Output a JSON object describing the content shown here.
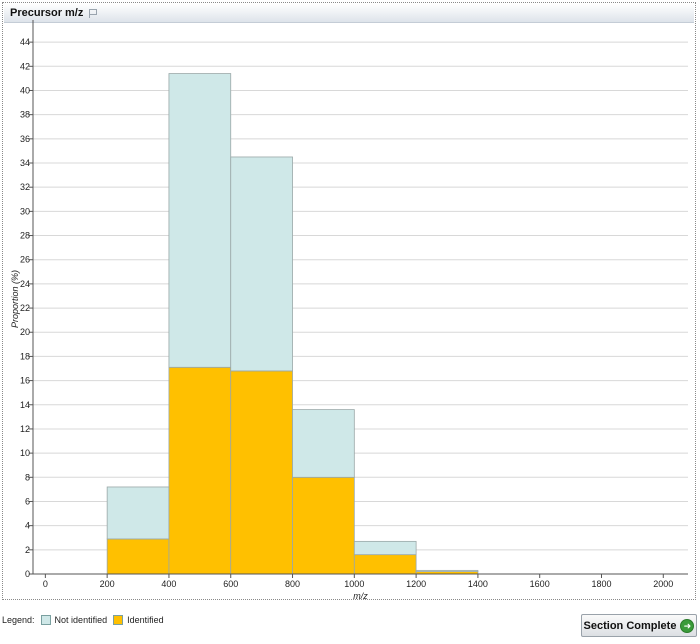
{
  "panel": {
    "title": "Precursor m/z"
  },
  "chart_data": {
    "type": "bar",
    "stacked": true,
    "xlabel": "m/z",
    "ylabel": "Proportion (%)",
    "xlim": [
      -40,
      2080
    ],
    "ylim": [
      0,
      45.5
    ],
    "x_ticks": [
      0,
      200,
      400,
      600,
      800,
      1000,
      1200,
      1400,
      1600,
      1800,
      2000
    ],
    "y_ticks": [
      0,
      2,
      4,
      6,
      8,
      10,
      12,
      14,
      16,
      18,
      20,
      22,
      24,
      26,
      28,
      30,
      32,
      34,
      36,
      38,
      40,
      42,
      44
    ],
    "grid": "horizontal",
    "bins": [
      [
        200,
        400
      ],
      [
        400,
        600
      ],
      [
        600,
        800
      ],
      [
        800,
        1000
      ],
      [
        1000,
        1200
      ],
      [
        1200,
        1400
      ]
    ],
    "series": [
      {
        "name": "Identified",
        "color": "#ffc000",
        "values": [
          2.9,
          17.1,
          16.8,
          8.0,
          1.6,
          0.2
        ]
      },
      {
        "name": "Not identified",
        "color": "#cfe8e8",
        "values": [
          4.3,
          24.3,
          17.7,
          5.6,
          1.1,
          0.1
        ]
      }
    ]
  },
  "legend": {
    "label": "Legend:",
    "items": [
      {
        "label": "Not identified",
        "color": "#cfe8e8"
      },
      {
        "label": "Identified",
        "color": "#ffc000"
      }
    ]
  },
  "actions": {
    "section_complete": "Section Complete"
  }
}
